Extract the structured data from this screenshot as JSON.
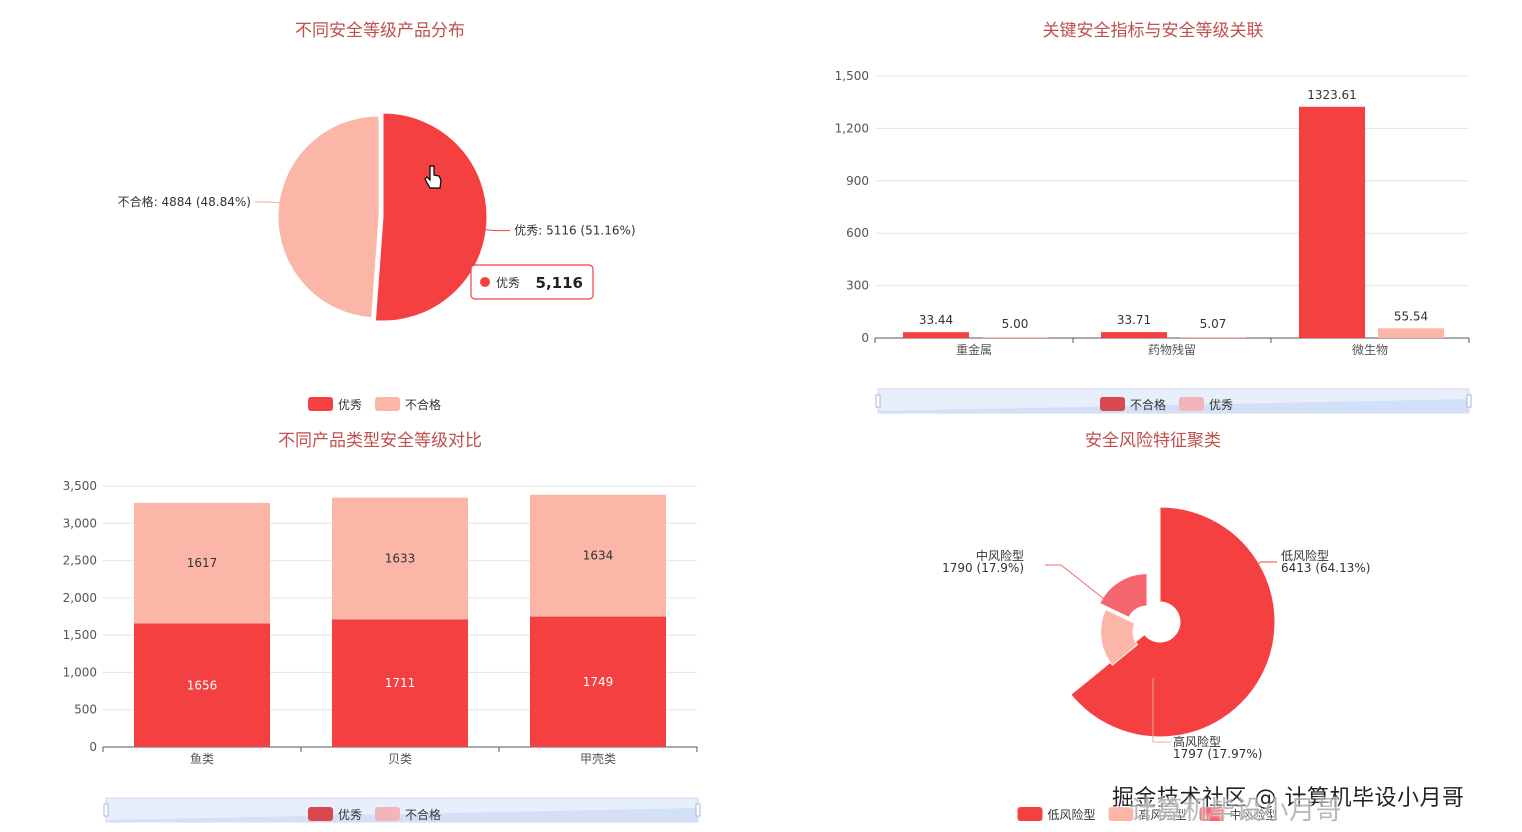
{
  "colors": {
    "red": "#f44040",
    "pink": "#fbb6a8",
    "dark_red": "#d9484e",
    "light_pink": "#f0b6b9",
    "mid_red": "#f56570",
    "title": "#c0504d"
  },
  "pie_tooltip": {
    "name": "优秀",
    "value": "5,116"
  },
  "watermark": {
    "text": "掘金技术社区 @ 计算机毕设小月哥",
    "shadow": "计算机毕设小月哥"
  },
  "chart_data": [
    {
      "id": "p1",
      "type": "pie",
      "title": "不同安全等级产品分布",
      "slices": [
        {
          "name": "优秀",
          "value": 5116,
          "label": "优秀: 5116 (51.16%)"
        },
        {
          "name": "不合格",
          "value": 4884,
          "label": "不合格: 4884 (48.84%)"
        }
      ],
      "legend": [
        "优秀",
        "不合格"
      ],
      "legend_position": "bottom"
    },
    {
      "id": "p2",
      "type": "bar",
      "title": "关键安全指标与安全等级关联",
      "categories": [
        "重金属",
        "药物残留",
        "微生物"
      ],
      "series": [
        {
          "name": "不合格",
          "values": [
            33.44,
            33.71,
            1323.61
          ],
          "labels": [
            "33.44",
            "33.71",
            "1323.61"
          ]
        },
        {
          "name": "优秀",
          "values": [
            5.0,
            5.07,
            55.54
          ],
          "labels": [
            "5.00",
            "5.07",
            "55.54"
          ]
        }
      ],
      "ylim": [
        0,
        1500
      ],
      "yticks": [
        "0",
        "300",
        "600",
        "900",
        "1,200",
        "1,500"
      ],
      "legend": [
        "不合格",
        "优秀"
      ],
      "grid": true
    },
    {
      "id": "p3",
      "type": "bar",
      "stacked": true,
      "title": "不同产品类型安全等级对比",
      "categories": [
        "鱼类",
        "贝类",
        "甲壳类"
      ],
      "series": [
        {
          "name": "优秀",
          "values": [
            1656,
            1711,
            1749
          ],
          "labels": [
            "1656",
            "1711",
            "1749"
          ]
        },
        {
          "name": "不合格",
          "values": [
            1617,
            1633,
            1634
          ],
          "labels": [
            "1617",
            "1633",
            "1634"
          ]
        }
      ],
      "ylim": [
        0,
        3500
      ],
      "yticks": [
        "0",
        "500",
        "1,000",
        "1,500",
        "2,000",
        "2,500",
        "3,000",
        "3,500"
      ],
      "legend": [
        "优秀",
        "不合格"
      ],
      "grid": true
    },
    {
      "id": "p4",
      "type": "pie",
      "rose": true,
      "title": "安全风险特征聚类",
      "slices": [
        {
          "name": "低风险型",
          "value": 6413,
          "label": "6413 (64.13%)"
        },
        {
          "name": "高风险型",
          "value": 1797,
          "label": "1797 (17.97%)"
        },
        {
          "name": "中风险型",
          "value": 1790,
          "label": "1790 (17.9%)"
        }
      ],
      "legend": [
        "低风险型",
        "高风险型",
        "中风险型"
      ],
      "legend_position": "bottom"
    }
  ]
}
